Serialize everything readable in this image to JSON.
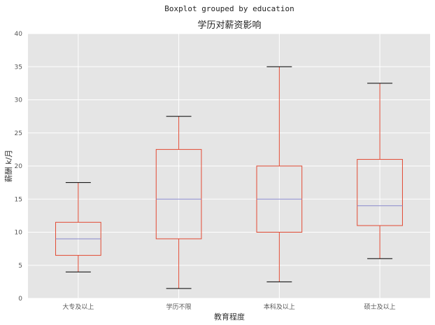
{
  "chart_data": {
    "type": "boxplot",
    "suptitle": "Boxplot grouped by education",
    "title": "学历对薪资影响",
    "xlabel": "教育程度",
    "ylabel": "薪酬 k/月",
    "ylim": [
      0,
      40
    ],
    "yticks": [
      0,
      5,
      10,
      15,
      20,
      25,
      30,
      35,
      40
    ],
    "grid": true,
    "categories": [
      "大专及以上",
      "学历不限",
      "本科及以上",
      "硕士及以上"
    ],
    "boxes": [
      {
        "whisker_low": 4,
        "q1": 6.5,
        "median": 9,
        "q3": 11.5,
        "whisker_high": 17.5
      },
      {
        "whisker_low": 1.5,
        "q1": 9,
        "median": 15,
        "q3": 22.5,
        "whisker_high": 27.5
      },
      {
        "whisker_low": 2.5,
        "q1": 10,
        "median": 15,
        "q3": 20,
        "whisker_high": 35
      },
      {
        "whisker_low": 6,
        "q1": 11,
        "median": 14,
        "q3": 21,
        "whisker_high": 32.5
      }
    ],
    "colors": {
      "background": "#e5e5e5",
      "grid": "#ffffff",
      "box": "#e24a33",
      "median": "#8888cc",
      "whisker_cap": "#000000"
    }
  }
}
